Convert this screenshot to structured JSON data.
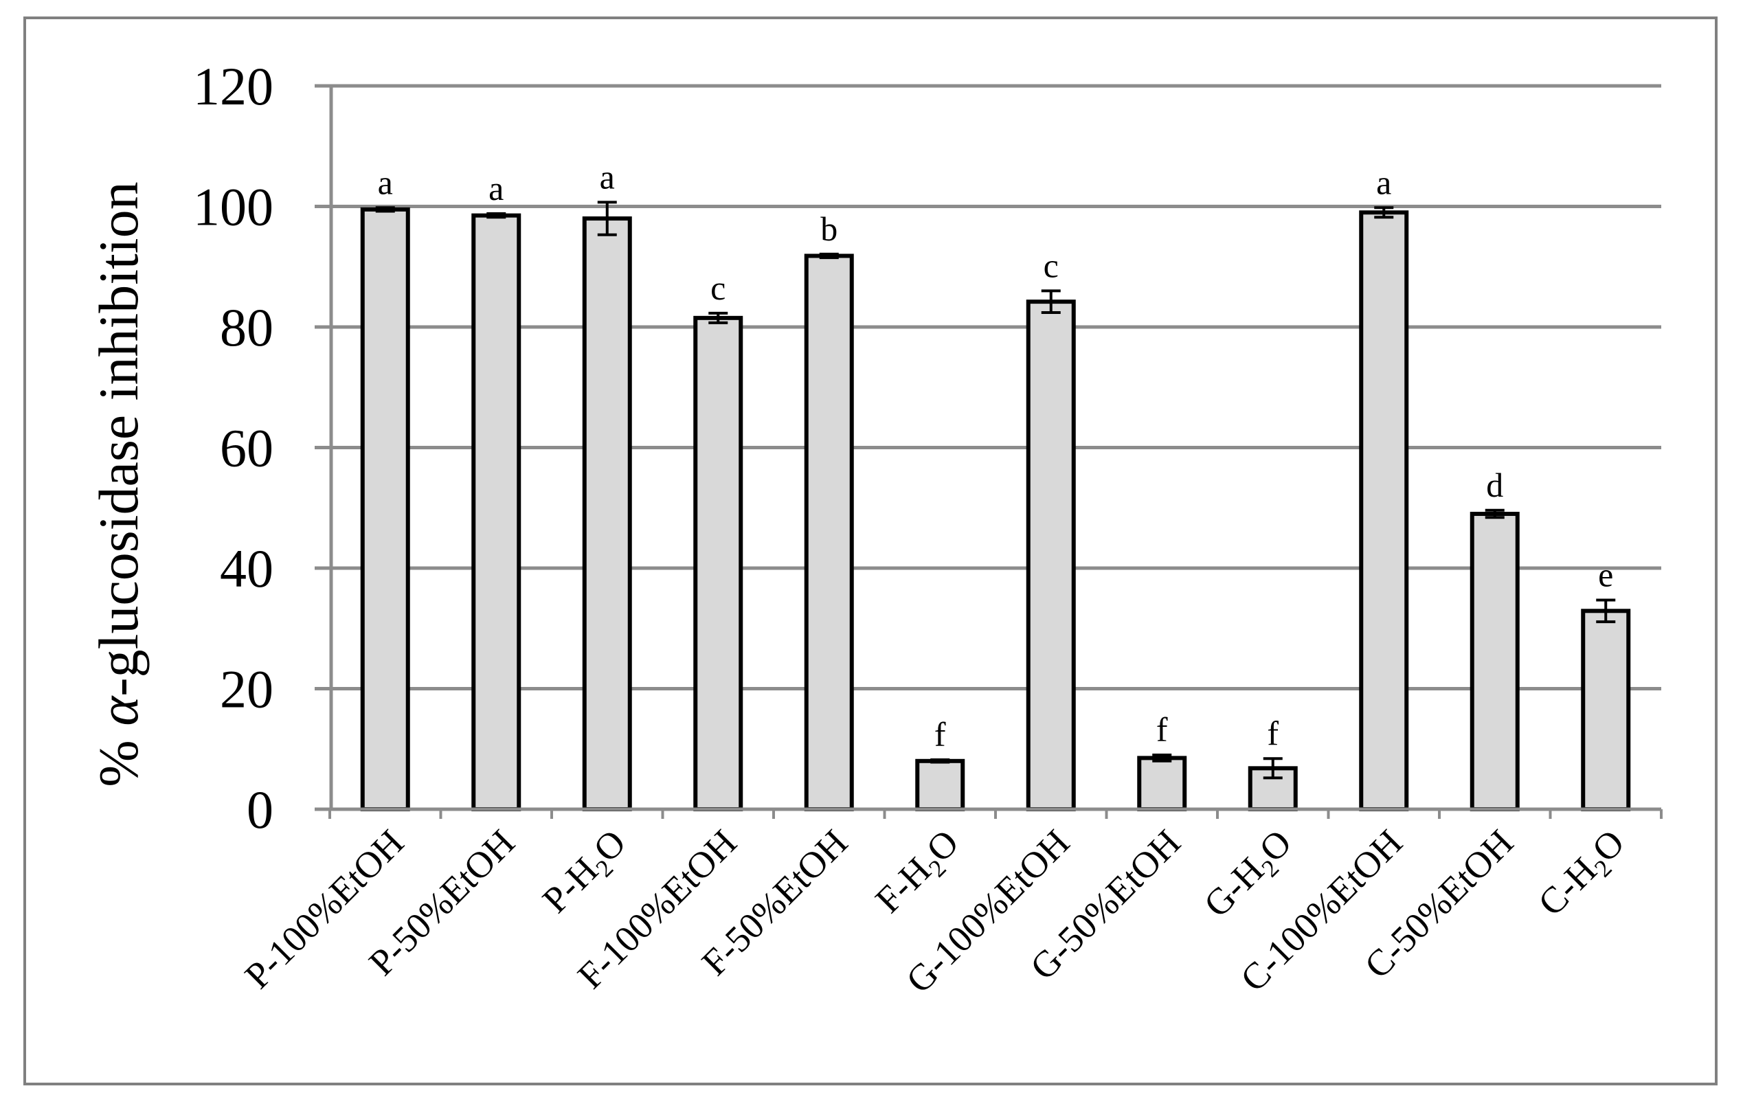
{
  "chart_data": {
    "type": "bar",
    "title": "",
    "xlabel": "",
    "ylabel_parts": [
      "% ",
      "α",
      "-glucosidase  inhibition"
    ],
    "ylim": [
      0,
      120
    ],
    "yticks": [
      0,
      20,
      40,
      60,
      80,
      100,
      120
    ],
    "grid": true,
    "legend": "none",
    "categories": [
      {
        "prefix": "P-100%EtOH",
        "sub": "",
        "suffix": ""
      },
      {
        "prefix": "P-50%EtOH",
        "sub": "",
        "suffix": ""
      },
      {
        "prefix": "P-H",
        "sub": "2",
        "suffix": "O"
      },
      {
        "prefix": "F-100%EtOH",
        "sub": "",
        "suffix": ""
      },
      {
        "prefix": "F-50%EtOH",
        "sub": "",
        "suffix": ""
      },
      {
        "prefix": "F-H",
        "sub": "2",
        "suffix": "O"
      },
      {
        "prefix": "G-100%EtOH",
        "sub": "",
        "suffix": ""
      },
      {
        "prefix": "G-50%EtOH",
        "sub": "",
        "suffix": ""
      },
      {
        "prefix": "G-H",
        "sub": "2",
        "suffix": "O"
      },
      {
        "prefix": "C-100%EtOH",
        "sub": "",
        "suffix": ""
      },
      {
        "prefix": "C-50%EtOH",
        "sub": "",
        "suffix": ""
      },
      {
        "prefix": "C-H",
        "sub": "2",
        "suffix": "O"
      }
    ],
    "values": [
      99.5,
      98.5,
      98.0,
      81.5,
      91.8,
      8.0,
      84.2,
      8.5,
      6.8,
      99.0,
      49.0,
      32.9
    ],
    "errors": [
      0.3,
      0.3,
      2.7,
      0.8,
      0.3,
      0.2,
      1.8,
      0.5,
      1.6,
      0.8,
      0.6,
      1.8
    ],
    "significance": [
      "a",
      "a",
      "a",
      "c",
      "b",
      "f",
      "c",
      "f",
      "f",
      "a",
      "d",
      "e"
    ],
    "colors": {
      "bar_fill": "#d9d9d9",
      "bar_stroke": "#000000",
      "gridline": "#8c8c8c",
      "axis": "#8c8c8c",
      "frame": "#808080"
    }
  }
}
